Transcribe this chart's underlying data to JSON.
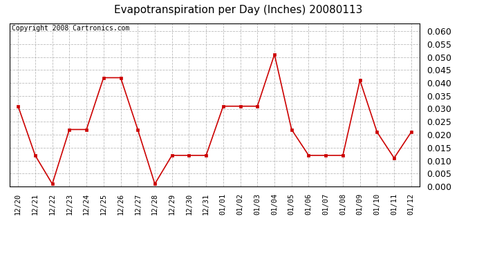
{
  "title": "Evapotranspiration per Day (Inches) 20080113",
  "copyright_text": "Copyright 2008 Cartronics.com",
  "x_labels": [
    "12/20",
    "12/21",
    "12/22",
    "12/23",
    "12/24",
    "12/25",
    "12/26",
    "12/27",
    "12/28",
    "12/29",
    "12/30",
    "12/31",
    "01/01",
    "01/02",
    "01/03",
    "01/04",
    "01/05",
    "01/06",
    "01/07",
    "01/08",
    "01/09",
    "01/10",
    "01/11",
    "01/12"
  ],
  "y_values": [
    0.031,
    0.012,
    0.001,
    0.022,
    0.022,
    0.042,
    0.042,
    0.022,
    0.001,
    0.012,
    0.012,
    0.012,
    0.031,
    0.031,
    0.031,
    0.051,
    0.022,
    0.012,
    0.012,
    0.012,
    0.041,
    0.021,
    0.011,
    0.021
  ],
  "line_color": "#cc0000",
  "marker": "s",
  "marker_size": 3,
  "ylim": [
    0.0,
    0.063
  ],
  "yticks": [
    0.0,
    0.005,
    0.01,
    0.015,
    0.02,
    0.025,
    0.03,
    0.035,
    0.04,
    0.045,
    0.05,
    0.055,
    0.06
  ],
  "grid_color": "#bbbbbb",
  "grid_style": "--",
  "bg_color": "#ffffff",
  "title_fontsize": 11,
  "copyright_fontsize": 7,
  "tick_fontsize": 7.5,
  "ytick_fontsize": 9
}
